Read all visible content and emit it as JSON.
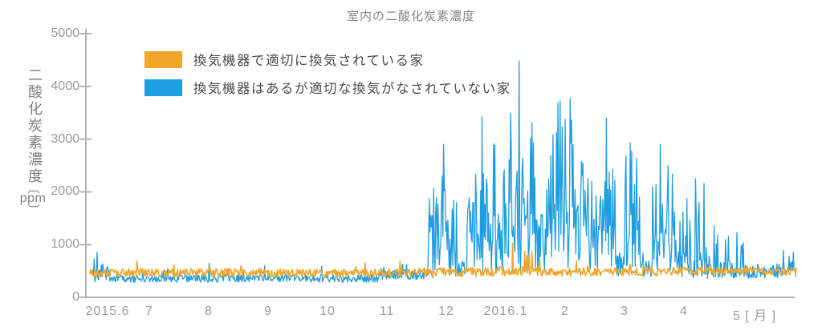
{
  "chart_data": {
    "type": "line",
    "title": "室内の二酸化炭素濃度",
    "y_axis": {
      "label": "二酸化炭素濃度",
      "unit": "ppm",
      "bracket_open": "〔",
      "bracket_close": "〕",
      "ticks": [
        5000,
        4000,
        3000,
        2000,
        1000,
        0
      ],
      "range": [
        0,
        5000
      ]
    },
    "x_axis": {
      "tick_labels": [
        "2015.6",
        "7",
        "8",
        "9",
        "10",
        "11",
        "12",
        "2016.1",
        "2",
        "3",
        "4",
        "5 [ 月 ]"
      ]
    },
    "axis_color": "#b2b2b2",
    "grid": false,
    "legend_position": "upper-left-inside",
    "seed": 20156,
    "sample_step_months": 0.012,
    "x_domain_months": [
      0,
      11.9
    ],
    "series": [
      {
        "name": "換気機器で適切に換気されている家",
        "color": "#F0A62C",
        "stroke_width": 1.6,
        "seed_offset": 1,
        "segments": [
          {
            "from": 0,
            "to": 5.6,
            "base": 465,
            "noise": 80,
            "spike_p": 0.02,
            "spike_min": 560,
            "spike_max": 720
          },
          {
            "from": 5.6,
            "to": 6.6,
            "base": 480,
            "noise": 85,
            "spike_p": 0.05,
            "spike_min": 580,
            "spike_max": 820
          },
          {
            "from": 6.6,
            "to": 7.6,
            "base": 500,
            "noise": 90,
            "spike_p": 0.07,
            "spike_min": 600,
            "spike_max": 1000
          },
          {
            "from": 7.6,
            "to": 9.6,
            "base": 480,
            "noise": 80,
            "spike_p": 0.04,
            "spike_min": 580,
            "spike_max": 800
          },
          {
            "from": 9.6,
            "to": 11.9,
            "base": 500,
            "noise": 75,
            "spike_p": 0.03,
            "spike_min": 580,
            "spike_max": 780
          }
        ],
        "peaks": [
          [
            7.11,
            1030
          ]
        ]
      },
      {
        "name": "換気機器はあるが適切な換気がなされていない家",
        "color": "#1E9DE0",
        "stroke_width": 1.3,
        "seed_offset": 2,
        "segments": [
          {
            "from": 0,
            "to": 0.35,
            "base": 420,
            "noise": 130,
            "spike_p": 0.2,
            "spike_min": 550,
            "spike_max": 880
          },
          {
            "from": 0.35,
            "to": 4.9,
            "base": 360,
            "noise": 75,
            "spike_p": 0.04,
            "spike_min": 440,
            "spike_max": 680
          },
          {
            "from": 4.9,
            "to": 5.69,
            "base": 430,
            "noise": 95,
            "spike_p": 0.08,
            "spike_min": 520,
            "spike_max": 760
          },
          {
            "from": 5.69,
            "to": 6.19,
            "base": 750,
            "noise": 400,
            "spike_p": 0.55,
            "spike_min": 900,
            "spike_max": 2900
          },
          {
            "from": 6.19,
            "to": 6.35,
            "base": 520,
            "noise": 160,
            "spike_p": 0.18,
            "spike_min": 620,
            "spike_max": 1300
          },
          {
            "from": 6.35,
            "to": 6.84,
            "base": 850,
            "noise": 480,
            "spike_p": 0.58,
            "spike_min": 1000,
            "spike_max": 3420
          },
          {
            "from": 6.84,
            "to": 6.95,
            "base": 600,
            "noise": 250,
            "spike_p": 0.28,
            "spike_min": 700,
            "spike_max": 1900
          },
          {
            "from": 6.95,
            "to": 7.57,
            "base": 1050,
            "noise": 580,
            "spike_p": 0.62,
            "spike_min": 1200,
            "spike_max": 3650
          },
          {
            "from": 7.57,
            "to": 7.7,
            "base": 750,
            "noise": 350,
            "spike_p": 0.45,
            "spike_min": 900,
            "spike_max": 2600
          },
          {
            "from": 7.7,
            "to": 8.4,
            "base": 1100,
            "noise": 600,
            "spike_p": 0.66,
            "spike_min": 1200,
            "spike_max": 3770
          },
          {
            "from": 8.4,
            "to": 8.55,
            "base": 800,
            "noise": 400,
            "spike_p": 0.45,
            "spike_min": 900,
            "spike_max": 2800
          },
          {
            "from": 8.55,
            "to": 8.85,
            "base": 950,
            "noise": 500,
            "spike_p": 0.58,
            "spike_min": 1100,
            "spike_max": 3400
          },
          {
            "from": 8.85,
            "to": 9.0,
            "base": 600,
            "noise": 220,
            "spike_p": 0.25,
            "spike_min": 700,
            "spike_max": 1700
          },
          {
            "from": 9.0,
            "to": 9.3,
            "base": 850,
            "noise": 450,
            "spike_p": 0.52,
            "spike_min": 950,
            "spike_max": 3100
          },
          {
            "from": 9.3,
            "to": 9.47,
            "base": 550,
            "noise": 170,
            "spike_p": 0.15,
            "spike_min": 650,
            "spike_max": 1200
          },
          {
            "from": 9.47,
            "to": 9.85,
            "base": 800,
            "noise": 420,
            "spike_p": 0.5,
            "spike_min": 900,
            "spike_max": 2900
          },
          {
            "from": 9.85,
            "to": 10.05,
            "base": 650,
            "noise": 300,
            "spike_p": 0.4,
            "spike_min": 750,
            "spike_max": 2000
          },
          {
            "from": 10.05,
            "to": 10.4,
            "base": 600,
            "noise": 260,
            "spike_p": 0.38,
            "spike_min": 700,
            "spike_max": 2250
          },
          {
            "from": 10.4,
            "to": 11.05,
            "base": 520,
            "noise": 170,
            "spike_p": 0.2,
            "spike_min": 620,
            "spike_max": 1400
          },
          {
            "from": 11.05,
            "to": 11.9,
            "base": 480,
            "noise": 120,
            "spike_p": 0.12,
            "spike_min": 580,
            "spike_max": 1050
          }
        ],
        "peaks": [
          [
            0.12,
            860
          ],
          [
            5.95,
            2900
          ],
          [
            6.6,
            3420
          ],
          [
            7.23,
            4480
          ],
          [
            8.08,
            3770
          ],
          [
            8.7,
            3400
          ],
          [
            9.1,
            2930
          ],
          [
            9.6,
            2900
          ],
          [
            10.2,
            2250
          ]
        ]
      }
    ]
  }
}
